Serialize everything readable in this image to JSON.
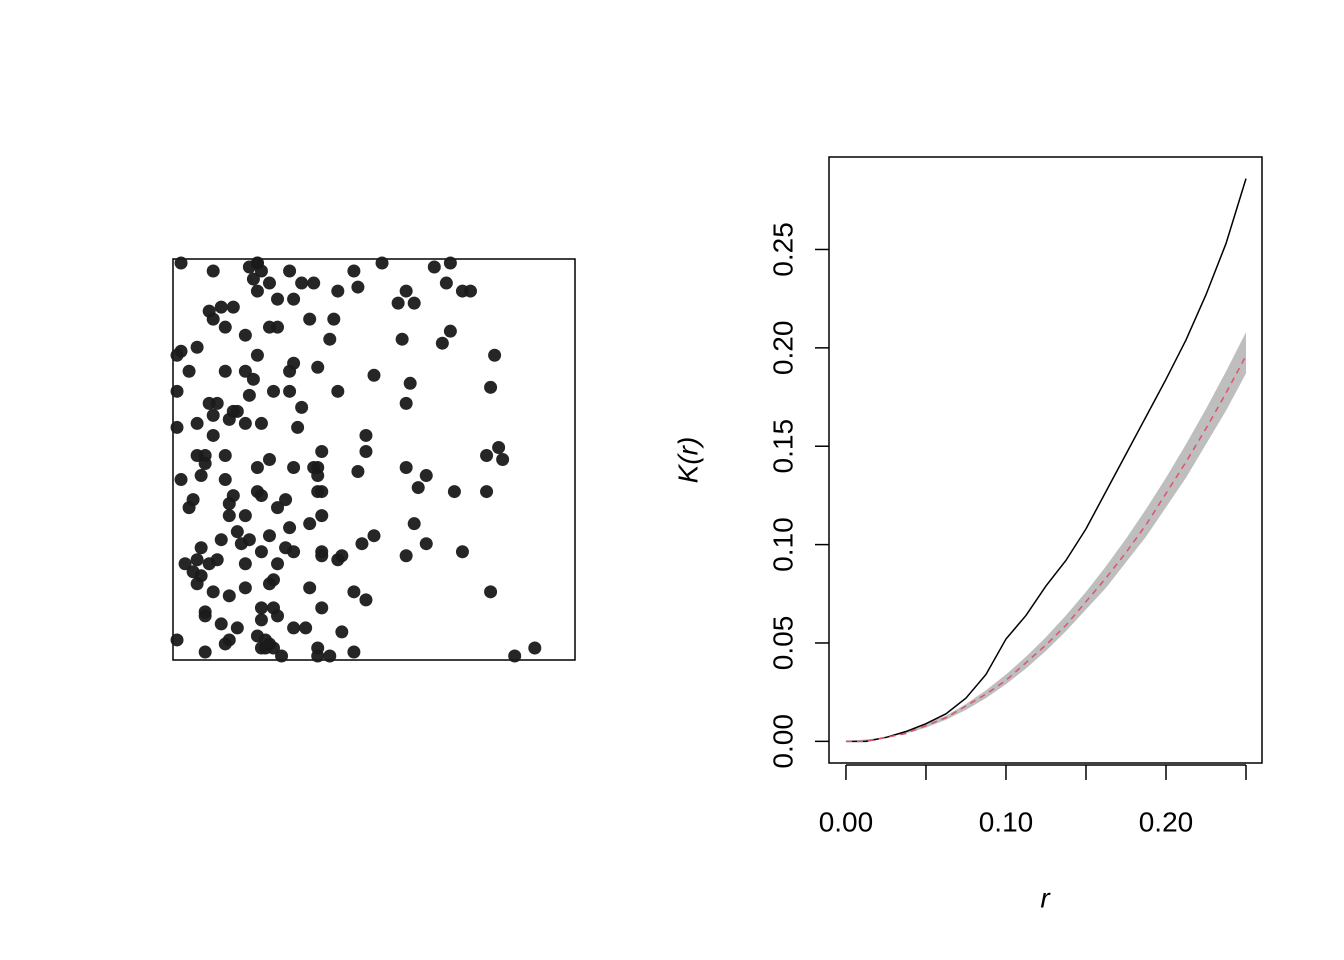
{
  "chart_data": [
    {
      "type": "scatter",
      "color": "#1a1a1a",
      "xlim": [
        0,
        1
      ],
      "ylim": [
        0,
        1
      ],
      "x": [
        0.02,
        0.1,
        0.21,
        0.19,
        0.21,
        0.22,
        0.2,
        0.24,
        0.29,
        0.32,
        0.35,
        0.45,
        0.52,
        0.65,
        0.69,
        0.68,
        0.72,
        0.74,
        0.58,
        0.56,
        0.6,
        0.46,
        0.41,
        0.21,
        0.26,
        0.3,
        0.09,
        0.12,
        0.15,
        0.1,
        0.34,
        0.4,
        0.13,
        0.24,
        0.26,
        0.18,
        0.57,
        0.39,
        0.67,
        0.69,
        0.02,
        0.01,
        0.06,
        0.21,
        0.3,
        0.04,
        0.13,
        0.18,
        0.29,
        0.2,
        0.36,
        0.5,
        0.59,
        0.79,
        0.8,
        0.01,
        0.25,
        0.19,
        0.29,
        0.41,
        0.11,
        0.09,
        0.1,
        0.15,
        0.16,
        0.58,
        0.32,
        0.14,
        0.01,
        0.06,
        0.18,
        0.22,
        0.31,
        0.1,
        0.48,
        0.06,
        0.08,
        0.13,
        0.48,
        0.37,
        0.81,
        0.78,
        0.82,
        0.08,
        0.21,
        0.24,
        0.3,
        0.35,
        0.36,
        0.46,
        0.58,
        0.63,
        0.02,
        0.07,
        0.13,
        0.36,
        0.15,
        0.21,
        0.22,
        0.28,
        0.36,
        0.37,
        0.61,
        0.7,
        0.78,
        0.04,
        0.05,
        0.14,
        0.26,
        0.14,
        0.37,
        0.18,
        0.34,
        0.29,
        0.6,
        0.5,
        0.47,
        0.16,
        0.19,
        0.22,
        0.17,
        0.24,
        0.63,
        0.12,
        0.07,
        0.28,
        0.3,
        0.37,
        0.37,
        0.41,
        0.42,
        0.58,
        0.72,
        0.03,
        0.06,
        0.11,
        0.09,
        0.18,
        0.26,
        0.05,
        0.07,
        0.06,
        0.25,
        0.1,
        0.14,
        0.18,
        0.24,
        0.34,
        0.45,
        0.48,
        0.79,
        0.08,
        0.08,
        0.22,
        0.25,
        0.26,
        0.37,
        0.12,
        0.16,
        0.3,
        0.33,
        0.42,
        0.01,
        0.14,
        0.21,
        0.23,
        0.24,
        0.25,
        0.13,
        0.23,
        0.08,
        0.22,
        0.27,
        0.36,
        0.36,
        0.39,
        0.45,
        0.85,
        0.9,
        0.22
      ],
      "y": [
        0.99,
        0.97,
        0.99,
        0.98,
        0.99,
        0.97,
        0.95,
        0.94,
        0.97,
        0.94,
        0.94,
        0.97,
        0.99,
        0.98,
        0.99,
        0.94,
        0.92,
        0.92,
        0.92,
        0.89,
        0.89,
        0.93,
        0.92,
        0.92,
        0.9,
        0.9,
        0.87,
        0.88,
        0.88,
        0.85,
        0.85,
        0.85,
        0.83,
        0.83,
        0.83,
        0.81,
        0.8,
        0.8,
        0.79,
        0.82,
        0.77,
        0.76,
        0.78,
        0.76,
        0.74,
        0.72,
        0.72,
        0.72,
        0.72,
        0.7,
        0.73,
        0.71,
        0.69,
        0.68,
        0.76,
        0.67,
        0.67,
        0.66,
        0.67,
        0.67,
        0.64,
        0.64,
        0.61,
        0.62,
        0.62,
        0.64,
        0.63,
        0.6,
        0.58,
        0.59,
        0.59,
        0.59,
        0.58,
        0.56,
        0.56,
        0.51,
        0.51,
        0.51,
        0.52,
        0.52,
        0.53,
        0.51,
        0.5,
        0.49,
        0.48,
        0.5,
        0.48,
        0.48,
        0.48,
        0.47,
        0.48,
        0.46,
        0.45,
        0.46,
        0.45,
        0.46,
        0.41,
        0.42,
        0.41,
        0.4,
        0.42,
        0.42,
        0.43,
        0.42,
        0.42,
        0.38,
        0.4,
        0.39,
        0.38,
        0.36,
        0.36,
        0.36,
        0.34,
        0.33,
        0.34,
        0.31,
        0.29,
        0.32,
        0.3,
        0.27,
        0.29,
        0.31,
        0.29,
        0.3,
        0.28,
        0.28,
        0.27,
        0.27,
        0.26,
        0.25,
        0.26,
        0.26,
        0.27,
        0.24,
        0.25,
        0.25,
        0.24,
        0.24,
        0.24,
        0.22,
        0.21,
        0.19,
        0.2,
        0.17,
        0.16,
        0.18,
        0.19,
        0.18,
        0.17,
        0.15,
        0.17,
        0.12,
        0.11,
        0.13,
        0.13,
        0.11,
        0.13,
        0.09,
        0.08,
        0.08,
        0.08,
        0.07,
        0.05,
        0.05,
        0.06,
        0.05,
        0.04,
        0.03,
        0.04,
        0.03,
        0.02,
        0.03,
        0.01,
        0.03,
        0.01,
        0.01,
        0.02,
        0.01,
        0.03,
        0.1
      ]
    },
    {
      "type": "line",
      "xlabel": "r",
      "ylabel": "K(r)",
      "xlim": [
        -0.0106,
        0.26
      ],
      "ylim": [
        -0.011,
        0.297
      ],
      "xticks": [
        {
          "value": 0,
          "label": "0.00"
        },
        {
          "value": 0.05,
          "label": null
        },
        {
          "value": 0.1,
          "label": "0.10"
        },
        {
          "value": 0.15,
          "label": null
        },
        {
          "value": 0.2,
          "label": "0.20"
        },
        {
          "value": 0.25,
          "label": null
        }
      ],
      "yticks": [
        {
          "value": 0,
          "label": "0.00"
        },
        {
          "value": 0.05,
          "label": "0.05"
        },
        {
          "value": 0.1,
          "label": "0.10"
        },
        {
          "value": 0.15,
          "label": "0.15"
        },
        {
          "value": 0.2,
          "label": "0.20"
        },
        {
          "value": 0.25,
          "label": "0.25"
        }
      ],
      "x": [
        0,
        0.0125,
        0.025,
        0.0375,
        0.05,
        0.0625,
        0.075,
        0.0875,
        0.1,
        0.1125,
        0.125,
        0.1375,
        0.15,
        0.1625,
        0.175,
        0.1875,
        0.2,
        0.2125,
        0.225,
        0.2375,
        0.25
      ],
      "band": {
        "color": "#bebebe",
        "upper": [
          0,
          0.001,
          0.002,
          0.005,
          0.009,
          0.013,
          0.019,
          0.026,
          0.034,
          0.043,
          0.053,
          0.064,
          0.076,
          0.089,
          0.103,
          0.118,
          0.134,
          0.151,
          0.169,
          0.188,
          0.208
        ],
        "lower": [
          0,
          0.0,
          0.002,
          0.004,
          0.007,
          0.011,
          0.016,
          0.022,
          0.029,
          0.037,
          0.046,
          0.056,
          0.067,
          0.078,
          0.091,
          0.104,
          0.119,
          0.134,
          0.151,
          0.168,
          0.187
        ]
      },
      "series": [
        {
          "color": "#000000",
          "dash": false,
          "values": [
            0,
            0.0,
            0.002,
            0.005,
            0.009,
            0.014,
            0.022,
            0.034,
            0.052,
            0.064,
            0.079,
            0.092,
            0.108,
            0.127,
            0.146,
            0.165,
            0.184,
            0.204,
            0.227,
            0.253,
            0.286
          ]
        },
        {
          "color": "#df536b",
          "dash": true,
          "values": [
            0,
            0.0,
            0.002,
            0.004,
            0.008,
            0.012,
            0.018,
            0.024,
            0.031,
            0.04,
            0.049,
            0.059,
            0.071,
            0.083,
            0.096,
            0.11,
            0.126,
            0.142,
            0.159,
            0.177,
            0.196
          ]
        }
      ]
    }
  ]
}
